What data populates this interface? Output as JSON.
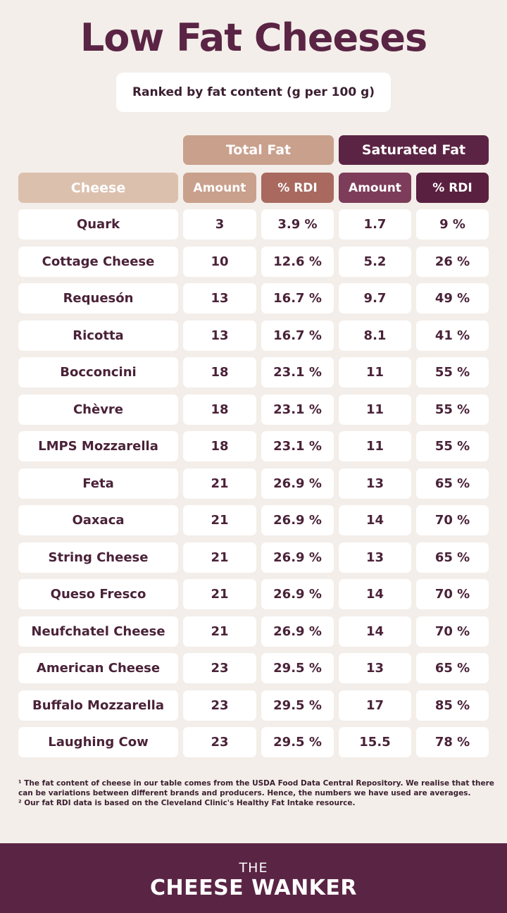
{
  "header": {
    "title": "Low Fat Cheeses",
    "subtitle": "Ranked by fat content (g per 100 g)"
  },
  "table": {
    "groups": [
      "Total Fat",
      "Saturated Fat"
    ],
    "columns": [
      "Cheese",
      "Amount",
      "% RDI",
      "Amount",
      "% RDI"
    ],
    "rows": [
      [
        "Quark",
        "3",
        "3.9 %",
        "1.7",
        "9 %"
      ],
      [
        "Cottage Cheese",
        "10",
        "12.6 %",
        "5.2",
        "26 %"
      ],
      [
        "Requesón",
        "13",
        "16.7 %",
        "9.7",
        "49 %"
      ],
      [
        "Ricotta",
        "13",
        "16.7 %",
        "8.1",
        "41 %"
      ],
      [
        "Bocconcini",
        "18",
        "23.1 %",
        "11",
        "55 %"
      ],
      [
        "Chèvre",
        "18",
        "23.1 %",
        "11",
        "55 %"
      ],
      [
        "LMPS Mozzarella",
        "18",
        "23.1 %",
        "11",
        "55 %"
      ],
      [
        "Feta",
        "21",
        "26.9 %",
        "13",
        "65 %"
      ],
      [
        "Oaxaca",
        "21",
        "26.9 %",
        "14",
        "70 %"
      ],
      [
        "String Cheese",
        "21",
        "26.9 %",
        "13",
        "65 %"
      ],
      [
        "Queso Fresco",
        "21",
        "26.9 %",
        "14",
        "70 %"
      ],
      [
        "Neufchatel Cheese",
        "21",
        "26.9 %",
        "14",
        "70 %"
      ],
      [
        "American Cheese",
        "23",
        "29.5 %",
        "13",
        "65 %"
      ],
      [
        "Buffalo Mozzarella",
        "23",
        "29.5 %",
        "17",
        "85 %"
      ],
      [
        "Laughing Cow",
        "23",
        "29.5 %",
        "15.5",
        "78 %"
      ]
    ]
  },
  "footnotes": [
    "¹ The fat content of cheese in our table comes from the USDA Food Data Central Repository. We realise that there can be variations between different brands and producers. Hence, the numbers we have used are averages.",
    "² Our fat RDI data is based on the Cleveland Clinic's Healthy Fat Intake resource."
  ],
  "footer": {
    "top": "THE",
    "brand": "CHEESE WANKER"
  }
}
